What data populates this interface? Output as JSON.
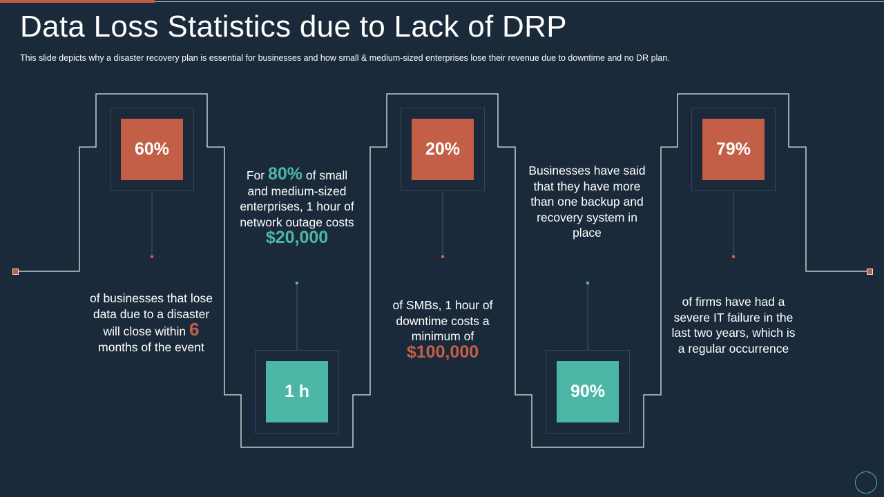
{
  "title": "Data Loss Statistics due to Lack of DRP",
  "subtitle": "This slide depicts why a disaster recovery  plan is essential for businesses and how small & medium-sized enterprises lose their revenue  due to downtime and no DR plan.",
  "stats": [
    {
      "value": "60%",
      "text_a": "of businesses that lose data due to a disaster will close within",
      "highlight": "6",
      "text_b": "months of the event"
    },
    {
      "value": "1 h",
      "text_a": "For",
      "highlight": "80%",
      "text_b": "of small and medium-sized enterprises, 1 hour of network outage costs",
      "highlight2": "$20,000"
    },
    {
      "value": "20%",
      "text_a": "of SMBs, 1 hour of downtime costs a minimum of",
      "highlight": "$100,000"
    },
    {
      "value": "90%",
      "text_a": "Businesses have said that they have more than one backup and recovery system in place"
    },
    {
      "value": "79%",
      "text_a": "of firms have had a severe IT failure in the last two years, which is a regular occurrence"
    }
  ],
  "colors": {
    "background": "#1b2a3a",
    "orange": "#c35f46",
    "teal": "#4cb7a7"
  }
}
